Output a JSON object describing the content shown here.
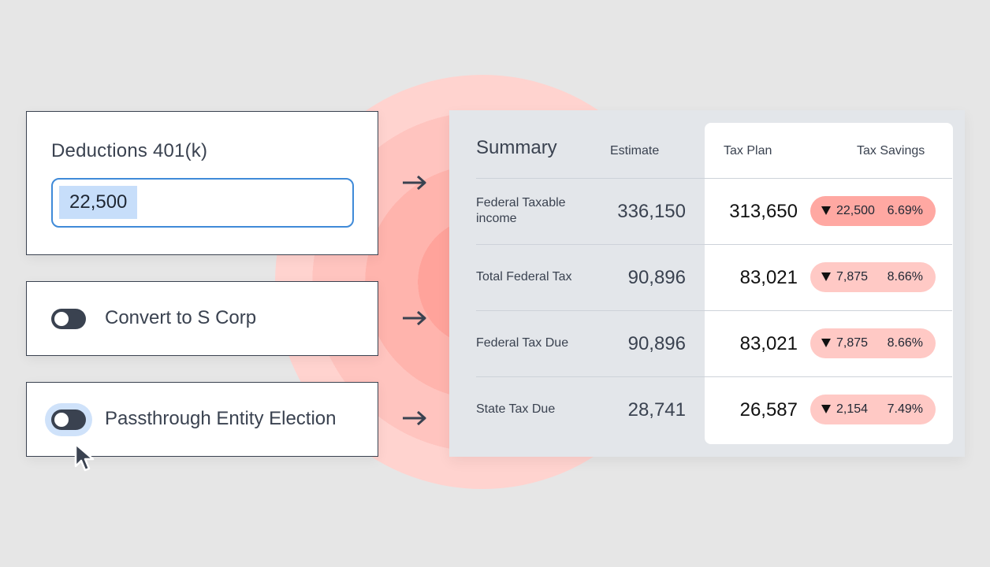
{
  "deductions": {
    "title": "Deductions 401(k)",
    "value": "22,500"
  },
  "options": [
    {
      "label": "Convert to S Corp",
      "enabled": false
    },
    {
      "label": "Passthrough Entity Election",
      "enabled": false
    }
  ],
  "summary": {
    "title": "Summary",
    "columns": {
      "estimate": "Estimate",
      "plan": "Tax Plan",
      "savings": "Tax Savings"
    },
    "rows": [
      {
        "label": "Federal Taxable income",
        "estimate": "336,150",
        "plan": "313,650",
        "savings_amount": "22,500",
        "savings_pct": "6.69%"
      },
      {
        "label": "Total Federal Tax",
        "estimate": "90,896",
        "plan": "83,021",
        "savings_amount": "7,875",
        "savings_pct": "8.66%"
      },
      {
        "label": "Federal Tax Due",
        "estimate": "90,896",
        "plan": "83,021",
        "savings_amount": "7,875",
        "savings_pct": "8.66%"
      },
      {
        "label": "State Tax Due",
        "estimate": "28,741",
        "plan": "26,587",
        "savings_amount": "2,154",
        "savings_pct": "7.49%"
      }
    ]
  },
  "icons": {
    "arrow": "arrow-right-icon",
    "cursor": "mouse-pointer-icon",
    "decrease": "triangle-down-icon"
  },
  "colors": {
    "accent_blue": "#3f8ad8",
    "selection": "#c7defa",
    "savings_strong": "#ffa8a2",
    "savings_soft": "#ffc9c5",
    "text_dark": "#3a4250"
  }
}
